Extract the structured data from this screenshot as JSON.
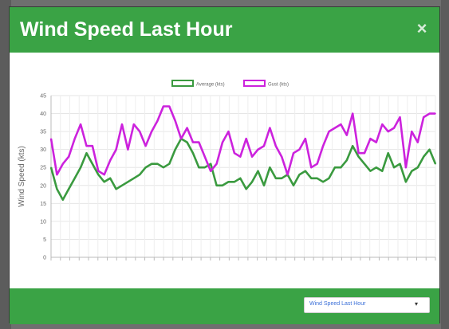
{
  "modal": {
    "title": "Wind Speed Last Hour",
    "close_label": "×",
    "period_select": {
      "selected": "Wind Speed Last Hour",
      "caret": "▾"
    }
  },
  "colors": {
    "header": "#3aa345",
    "average": "#3a9a3f",
    "gust": "#cc22dd"
  },
  "chart_data": {
    "type": "line",
    "ylabel": "Wind Speed (kts)",
    "ylim": [
      0,
      45
    ],
    "yticks": [
      0,
      5,
      10,
      15,
      20,
      25,
      30,
      35,
      40,
      45
    ],
    "grid": true,
    "legend_position": "top",
    "series": [
      {
        "name": "Average (kts)",
        "color": "#3a9a3f",
        "values": [
          25,
          19,
          16,
          19,
          22,
          25,
          29,
          26,
          23,
          21,
          22,
          19,
          20,
          21,
          22,
          23,
          25,
          26,
          26,
          25,
          26,
          30,
          33,
          32,
          29,
          25,
          25,
          26,
          20,
          20,
          21,
          21,
          22,
          19,
          21,
          24,
          20,
          25,
          22,
          22,
          23,
          20,
          23,
          24,
          22,
          22,
          21,
          22,
          25,
          25,
          27,
          31,
          28,
          26,
          24,
          25,
          24,
          29,
          25,
          26,
          21,
          24,
          25,
          28,
          30,
          26
        ]
      },
      {
        "name": "Gust (kts)",
        "color": "#cc22dd",
        "values": [
          33,
          23,
          26,
          28,
          33,
          37,
          31,
          31,
          24,
          23,
          27,
          30,
          37,
          30,
          37,
          35,
          31,
          35,
          38,
          42,
          42,
          38,
          33,
          36,
          32,
          32,
          28,
          24,
          26,
          32,
          35,
          29,
          28,
          33,
          28,
          30,
          31,
          36,
          31,
          28,
          23,
          29,
          30,
          33,
          25,
          26,
          31,
          35,
          36,
          37,
          34,
          40,
          29,
          29,
          33,
          32,
          37,
          35,
          36,
          39,
          25,
          35,
          32,
          39,
          40,
          40
        ]
      }
    ],
    "x_tick_count": 42
  }
}
